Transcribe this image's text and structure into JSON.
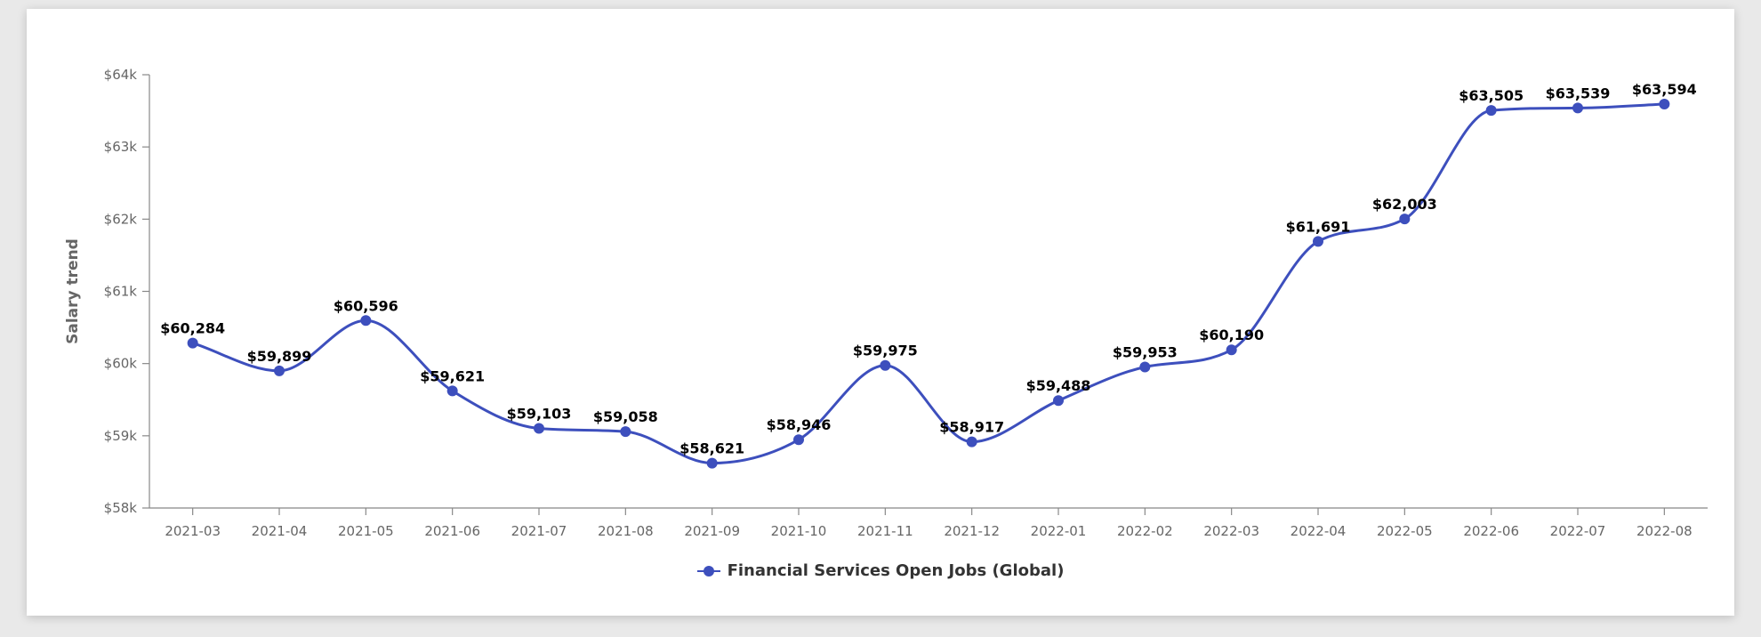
{
  "chart_data": {
    "type": "line",
    "categories": [
      "2021-03",
      "2021-04",
      "2021-05",
      "2021-06",
      "2021-07",
      "2021-08",
      "2021-09",
      "2021-10",
      "2021-11",
      "2021-12",
      "2022-01",
      "2022-02",
      "2022-03",
      "2022-04",
      "2022-05",
      "2022-06",
      "2022-07",
      "2022-08"
    ],
    "series": [
      {
        "name": "Financial Services Open Jobs (Global)",
        "values": [
          60284,
          59899,
          60596,
          59621,
          59103,
          59058,
          58621,
          58946,
          59975,
          58917,
          59488,
          59953,
          60190,
          61691,
          62003,
          63505,
          63539,
          63594
        ],
        "labels": [
          "$60,284",
          "$59,899",
          "$60,596",
          "$59,621",
          "$59,103",
          "$59,058",
          "$58,621",
          "$58,946",
          "$59,975",
          "$58,917",
          "$59,488",
          "$59,953",
          "$60,190",
          "$61,691",
          "$62,003",
          "$63,505",
          "$63,539",
          "$63,594"
        ],
        "color": "#3d4fbd"
      }
    ],
    "ylabel": "Salary trend",
    "ylim": [
      58000,
      64000
    ],
    "yticks": [
      58000,
      59000,
      60000,
      61000,
      62000,
      63000,
      64000
    ],
    "ytick_labels": [
      "$58k",
      "$59k",
      "$60k",
      "$61k",
      "$62k",
      "$63k",
      "$64k"
    ],
    "grid": false,
    "legend_position": "bottom-center",
    "curve": "smooth"
  }
}
